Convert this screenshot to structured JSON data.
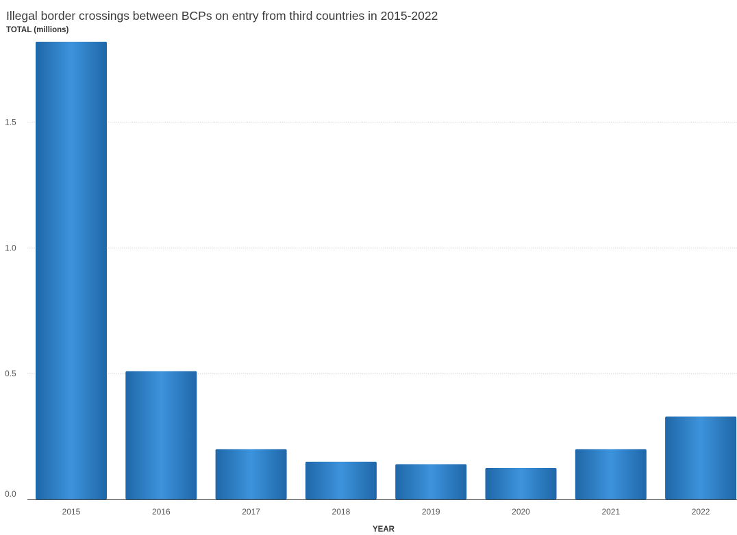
{
  "chart_data": {
    "type": "bar",
    "title": "Illegal border crossings between BCPs on entry from third countries in 2015-2022",
    "ylabel": "TOTAL (millions)",
    "xlabel": "YEAR",
    "categories": [
      "2015",
      "2016",
      "2017",
      "2018",
      "2019",
      "2020",
      "2021",
      "2022"
    ],
    "values": [
      1.82,
      0.51,
      0.2,
      0.15,
      0.14,
      0.125,
      0.2,
      0.33
    ],
    "ylim": [
      0,
      1.82
    ],
    "yticks": [
      0.0,
      0.5,
      1.0,
      1.5
    ],
    "ytick_labels": [
      "0.0",
      "0.5",
      "1.0",
      "1.5"
    ],
    "grid": true,
    "legend": "none",
    "colors": {
      "bar_edge": "#1f67a8",
      "bar_center": "#3d93dc",
      "grid": "#c8c8c8",
      "axis": "#444444"
    }
  }
}
